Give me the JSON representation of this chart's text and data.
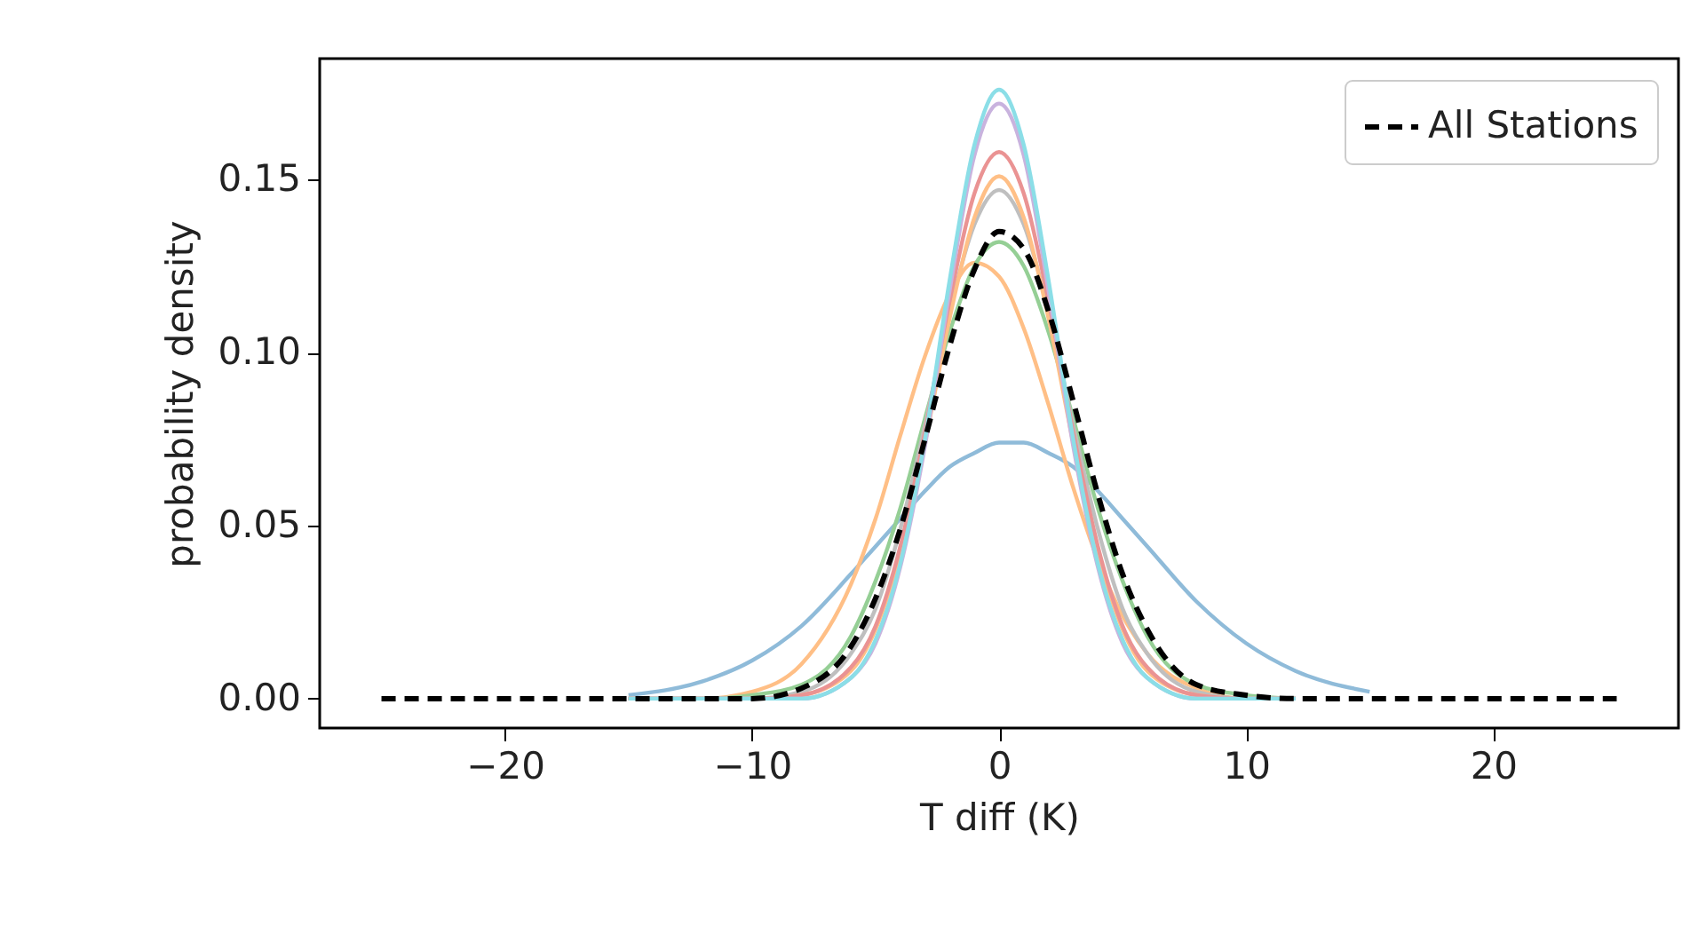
{
  "chart_data": {
    "type": "line",
    "xlabel": "T diff (K)",
    "ylabel": "probability density",
    "x": [
      -25,
      -20,
      -15,
      -12,
      -10,
      -8,
      -6,
      -5,
      -4,
      -3,
      -2,
      -1,
      0,
      1,
      2,
      3,
      4,
      5,
      6,
      8,
      10,
      12,
      15,
      20,
      25
    ],
    "series": [
      {
        "color": "#8fbbd9",
        "values": [
          null,
          null,
          0.001,
          0.005,
          0.011,
          0.021,
          0.036,
          0.044,
          0.052,
          0.06,
          0.067,
          0.071,
          0.074,
          0.074,
          0.071,
          0.067,
          0.06,
          0.052,
          0.044,
          0.028,
          0.016,
          0.008,
          0.002,
          null,
          null
        ]
      },
      {
        "color": "#ffbf86",
        "values": [
          null,
          null,
          0,
          0,
          0.002,
          0.01,
          0.033,
          0.052,
          0.076,
          0.099,
          0.117,
          0.126,
          0.122,
          0.107,
          0.085,
          0.061,
          0.04,
          0.024,
          0.013,
          0.003,
          0,
          0,
          null,
          null,
          null
        ]
      },
      {
        "color": "#95cf95",
        "values": [
          null,
          null,
          0,
          0,
          0.001,
          0.004,
          0.018,
          0.034,
          0.055,
          0.081,
          0.106,
          0.125,
          0.132,
          0.125,
          0.106,
          0.081,
          0.055,
          0.034,
          0.018,
          0.004,
          0.001,
          0,
          null,
          null,
          null
        ]
      },
      {
        "color": "#bfbfbf",
        "values": [
          null,
          null,
          0,
          0,
          0,
          0.002,
          0.013,
          0.026,
          0.049,
          0.079,
          0.112,
          0.137,
          0.147,
          0.137,
          0.112,
          0.079,
          0.049,
          0.026,
          0.013,
          0.002,
          0,
          0,
          null,
          null,
          null
        ]
      },
      {
        "color": "#ffbf86",
        "values": [
          null,
          null,
          0,
          0,
          0,
          0.001,
          0.008,
          0.02,
          0.042,
          0.074,
          0.11,
          0.139,
          0.151,
          0.139,
          0.11,
          0.074,
          0.042,
          0.02,
          0.008,
          0.001,
          0,
          0,
          null,
          null,
          null
        ]
      },
      {
        "color": "#ea9393",
        "values": [
          null,
          null,
          0,
          0,
          0,
          0.001,
          0.009,
          0.021,
          0.044,
          0.077,
          0.115,
          0.146,
          0.158,
          0.146,
          0.115,
          0.077,
          0.044,
          0.021,
          0.009,
          0.001,
          0,
          0,
          null,
          null,
          null
        ]
      },
      {
        "color": "#c9b3de",
        "values": [
          null,
          null,
          0,
          0,
          0,
          0,
          0.006,
          0.016,
          0.038,
          0.073,
          0.118,
          0.157,
          0.172,
          0.157,
          0.118,
          0.073,
          0.038,
          0.016,
          0.006,
          0,
          0,
          0,
          null,
          null,
          null
        ]
      },
      {
        "color": "#8bdee7",
        "values": [
          null,
          null,
          0,
          0,
          0,
          0,
          0.006,
          0.017,
          0.039,
          0.075,
          0.121,
          0.16,
          0.176,
          0.16,
          0.121,
          0.075,
          0.039,
          0.017,
          0.006,
          0,
          0,
          0,
          null,
          null,
          null
        ]
      },
      {
        "name": "All Stations",
        "color": "#000000",
        "line_style": "dashed",
        "values": [
          0,
          0,
          0,
          0,
          0,
          0.003,
          0.015,
          0.029,
          0.049,
          0.075,
          0.102,
          0.124,
          0.135,
          0.13,
          0.112,
          0.086,
          0.059,
          0.036,
          0.02,
          0.004,
          0.001,
          0,
          0,
          0,
          0
        ]
      }
    ],
    "xlim": [
      -27.5,
      27.5
    ],
    "xticks": [
      {
        "value": -20,
        "label": "−20"
      },
      {
        "value": -10,
        "label": "−10"
      },
      0,
      10,
      20
    ],
    "ylim": [
      -0.0085,
      0.185
    ],
    "yticks": [
      {
        "value": 0,
        "label": "0.00"
      },
      {
        "value": 0.05,
        "label": "0.05"
      },
      {
        "value": 0.1,
        "label": "0.10"
      },
      {
        "value": 0.15,
        "label": "0.15"
      }
    ],
    "legend": "top right",
    "grid": false
  }
}
